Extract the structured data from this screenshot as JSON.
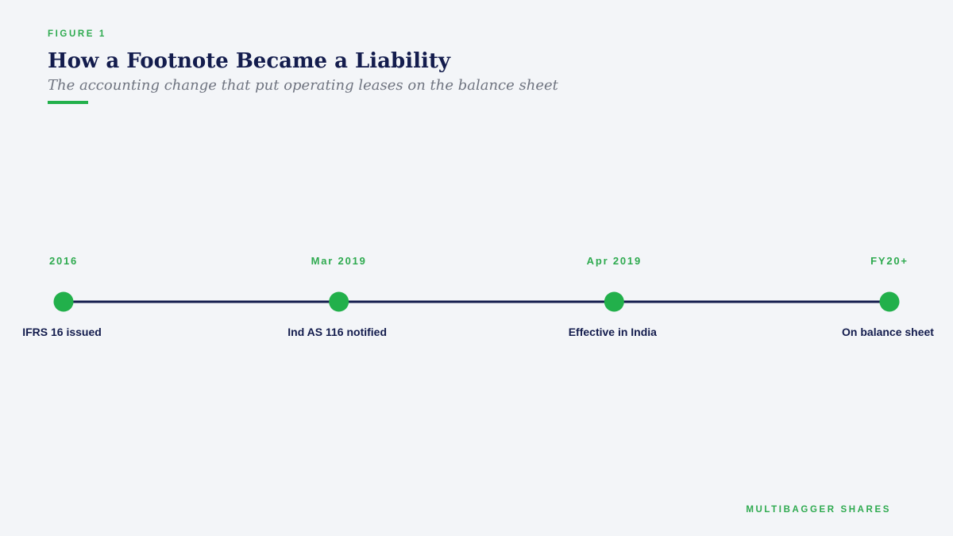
{
  "header": {
    "label": "FIGURE 1",
    "title": "How a Footnote Became a Liability",
    "subtitle": "The accounting change that put operating leases on the balance sheet"
  },
  "timeline": {
    "events": [
      {
        "date": "2016",
        "label": "IFRS 16 issued"
      },
      {
        "date": "Mar 2019",
        "label": "Ind AS 116 notified"
      },
      {
        "date": "Apr 2019",
        "label": "Effective in India"
      },
      {
        "date": "FY20+",
        "label": "On balance sheet"
      }
    ]
  },
  "footer": {
    "brand": "MULTIBAGGER SHARES"
  }
}
